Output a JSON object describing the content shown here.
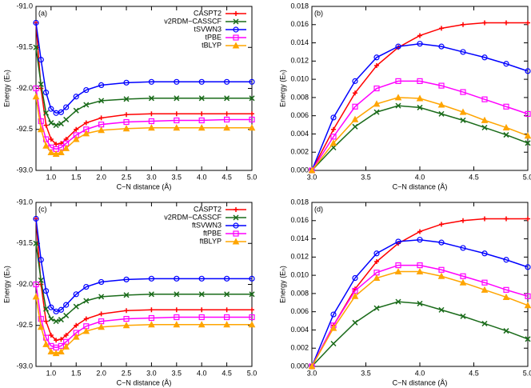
{
  "chart_data": [
    {
      "type": "line",
      "panel_label": "(a)",
      "xlabel": "C−N distance (Å)",
      "ylabel": "Energy (Eₕ)",
      "legend": "upper right",
      "xlim": [
        0.7,
        5.0
      ],
      "ylim": [
        -93,
        -91
      ],
      "xticks": [
        {
          "value": 1,
          "label": "1.0"
        },
        1.5,
        {
          "value": 2,
          "label": "2.0"
        },
        2.5,
        {
          "value": 3,
          "label": "3.0"
        },
        3.5,
        {
          "value": 4,
          "label": "4.0"
        },
        4.5,
        {
          "value": 5,
          "label": "5.0"
        }
      ],
      "yticks": [
        {
          "value": -93,
          "label": "-93.0"
        },
        -92.5,
        {
          "value": -92,
          "label": "-92.0"
        },
        -91.5,
        {
          "value": -91,
          "label": "-91.0"
        }
      ],
      "x": [
        0.7,
        0.8,
        0.9,
        1.0,
        1.1,
        1.2,
        1.3,
        1.5,
        1.7,
        2.0,
        2.5,
        3.0,
        3.5,
        4.0,
        4.5,
        5.0
      ],
      "series": [
        {
          "name": "CASPT2",
          "color": "#ff0000",
          "marker": "plus",
          "values": [
            -91.2,
            -92.0,
            -92.45,
            -92.62,
            -92.68,
            -92.67,
            -92.62,
            -92.5,
            -92.42,
            -92.36,
            -92.32,
            -92.31,
            -92.31,
            -92.31,
            -92.31,
            -92.31
          ]
        },
        {
          "name": "v2RDM−CASSCF",
          "color": "#1a6b1a",
          "marker": "cross",
          "values": [
            -91.5,
            -91.95,
            -92.3,
            -92.42,
            -92.45,
            -92.43,
            -92.38,
            -92.27,
            -92.2,
            -92.15,
            -92.13,
            -92.12,
            -92.12,
            -92.12,
            -92.12,
            -92.12
          ]
        },
        {
          "name": "tSVWN3",
          "color": "#0000ff",
          "marker": "circle",
          "values": [
            -91.2,
            -91.65,
            -92.05,
            -92.25,
            -92.3,
            -92.29,
            -92.23,
            -92.1,
            -92.02,
            -91.96,
            -91.93,
            -91.92,
            -91.92,
            -91.92,
            -91.92,
            -91.92
          ]
        },
        {
          "name": "tPBE",
          "color": "#ff00ff",
          "marker": "square",
          "values": [
            -92.0,
            -92.4,
            -92.62,
            -92.72,
            -92.74,
            -92.72,
            -92.67,
            -92.57,
            -92.5,
            -92.44,
            -92.41,
            -92.4,
            -92.39,
            -92.39,
            -92.38,
            -92.38
          ]
        },
        {
          "name": "tBLYP",
          "color": "#ffa500",
          "marker": "triangle",
          "values": [
            -92.1,
            -92.5,
            -92.7,
            -92.78,
            -92.8,
            -92.78,
            -92.73,
            -92.62,
            -92.55,
            -92.51,
            -92.49,
            -92.48,
            -92.48,
            -92.48,
            -92.48,
            -92.48
          ]
        }
      ]
    },
    {
      "type": "line",
      "panel_label": "(b)",
      "xlabel": "C−N distance (Å)",
      "ylabel": "Energy (Eₕ)",
      "xlim": [
        3,
        5
      ],
      "ylim": [
        0,
        0.018
      ],
      "xticks": [
        {
          "value": 3,
          "label": "3.0"
        },
        3.5,
        {
          "value": 4,
          "label": "4.0"
        },
        4.5,
        {
          "value": 5,
          "label": "5.0"
        }
      ],
      "yticks": [
        {
          "value": 0,
          "label": "0.000"
        },
        {
          "value": 0.002,
          "label": "0.002"
        },
        {
          "value": 0.004,
          "label": "0.004"
        },
        {
          "value": 0.006,
          "label": "0.006"
        },
        {
          "value": 0.008,
          "label": "0.008"
        },
        {
          "value": 0.01,
          "label": "0.010"
        },
        {
          "value": 0.012,
          "label": "0.012"
        },
        {
          "value": 0.014,
          "label": "0.014"
        },
        {
          "value": 0.016,
          "label": "0.016"
        },
        {
          "value": 0.018,
          "label": "0.018"
        }
      ],
      "x": [
        3.0,
        3.2,
        3.4,
        3.6,
        3.8,
        4.0,
        4.2,
        4.4,
        4.6,
        4.8,
        5.0
      ],
      "series": [
        {
          "color": "#ff0000",
          "marker": "plus",
          "values": [
            0,
            0.0045,
            0.0085,
            0.0115,
            0.0135,
            0.0148,
            0.0156,
            0.016,
            0.0162,
            0.0162,
            0.0162
          ]
        },
        {
          "color": "#1a6b1a",
          "marker": "cross",
          "values": [
            0,
            0.0025,
            0.0048,
            0.0064,
            0.0071,
            0.0069,
            0.0062,
            0.0055,
            0.0047,
            0.0039,
            0.003
          ]
        },
        {
          "color": "#0000ff",
          "marker": "circle",
          "values": [
            0,
            0.0058,
            0.0098,
            0.0124,
            0.0136,
            0.0139,
            0.0136,
            0.013,
            0.0124,
            0.0117,
            0.0109
          ]
        },
        {
          "color": "#ff00ff",
          "marker": "square",
          "values": [
            0,
            0.0037,
            0.007,
            0.009,
            0.0098,
            0.0098,
            0.0093,
            0.0086,
            0.0078,
            0.007,
            0.0062
          ]
        },
        {
          "color": "#ffa500",
          "marker": "triangle",
          "values": [
            0,
            0.003,
            0.0056,
            0.0073,
            0.008,
            0.0079,
            0.0072,
            0.0064,
            0.0055,
            0.0047,
            0.0038
          ]
        }
      ]
    },
    {
      "type": "line",
      "panel_label": "(c)",
      "xlabel": "C−N distance (Å)",
      "ylabel": "Energy (Eₕ)",
      "legend": "upper right",
      "xlim": [
        0.7,
        5.0
      ],
      "ylim": [
        -93,
        -91
      ],
      "xticks": [
        {
          "value": 1,
          "label": "1.0"
        },
        1.5,
        {
          "value": 2,
          "label": "2.0"
        },
        2.5,
        {
          "value": 3,
          "label": "3.0"
        },
        3.5,
        {
          "value": 4,
          "label": "4.0"
        },
        4.5,
        {
          "value": 5,
          "label": "5.0"
        }
      ],
      "yticks": [
        {
          "value": -93,
          "label": "-93.0"
        },
        -92.5,
        {
          "value": -92,
          "label": "-92.0"
        },
        -91.5,
        {
          "value": -91,
          "label": "-91.0"
        }
      ],
      "x": [
        0.7,
        0.8,
        0.9,
        1.0,
        1.1,
        1.2,
        1.3,
        1.5,
        1.7,
        2.0,
        2.5,
        3.0,
        3.5,
        4.0,
        4.5,
        5.0
      ],
      "series": [
        {
          "name": "CASPT2",
          "color": "#ff0000",
          "marker": "plus",
          "values": [
            -91.2,
            -92.0,
            -92.45,
            -92.62,
            -92.68,
            -92.67,
            -92.62,
            -92.5,
            -92.42,
            -92.36,
            -92.32,
            -92.31,
            -92.31,
            -92.31,
            -92.31,
            -92.31
          ]
        },
        {
          "name": "v2RDM−CASSCF",
          "color": "#1a6b1a",
          "marker": "cross",
          "values": [
            -91.5,
            -91.95,
            -92.3,
            -92.42,
            -92.45,
            -92.43,
            -92.38,
            -92.27,
            -92.2,
            -92.15,
            -92.13,
            -92.12,
            -92.12,
            -92.12,
            -92.12,
            -92.12
          ]
        },
        {
          "name": "ftSVWN3",
          "color": "#0000ff",
          "marker": "circle",
          "values": [
            -91.2,
            -91.7,
            -92.08,
            -92.28,
            -92.33,
            -92.31,
            -92.25,
            -92.12,
            -92.03,
            -91.97,
            -91.94,
            -91.93,
            -91.93,
            -91.93,
            -91.93,
            -91.93
          ]
        },
        {
          "name": "ftPBE",
          "color": "#ff00ff",
          "marker": "square",
          "values": [
            -92.0,
            -92.42,
            -92.65,
            -92.75,
            -92.77,
            -92.75,
            -92.7,
            -92.59,
            -92.51,
            -92.45,
            -92.42,
            -92.41,
            -92.4,
            -92.4,
            -92.4,
            -92.4
          ]
        },
        {
          "name": "ftBLYP",
          "color": "#ffa500",
          "marker": "triangle",
          "values": [
            -92.15,
            -92.52,
            -92.73,
            -92.82,
            -92.84,
            -92.82,
            -92.76,
            -92.64,
            -92.57,
            -92.52,
            -92.5,
            -92.49,
            -92.49,
            -92.49,
            -92.49,
            -92.49
          ]
        }
      ]
    },
    {
      "type": "line",
      "panel_label": "(d)",
      "xlabel": "C−N distance (Å)",
      "ylabel": "Energy (Eₕ)",
      "xlim": [
        3,
        5
      ],
      "ylim": [
        0,
        0.018
      ],
      "xticks": [
        {
          "value": 3,
          "label": "3.0"
        },
        3.5,
        {
          "value": 4,
          "label": "4.0"
        },
        4.5,
        {
          "value": 5,
          "label": "5.0"
        }
      ],
      "yticks": [
        {
          "value": 0,
          "label": "0.000"
        },
        {
          "value": 0.002,
          "label": "0.002"
        },
        {
          "value": 0.004,
          "label": "0.004"
        },
        {
          "value": 0.006,
          "label": "0.006"
        },
        {
          "value": 0.008,
          "label": "0.008"
        },
        {
          "value": 0.01,
          "label": "0.010"
        },
        {
          "value": 0.012,
          "label": "0.012"
        },
        {
          "value": 0.014,
          "label": "0.014"
        },
        {
          "value": 0.016,
          "label": "0.016"
        },
        {
          "value": 0.018,
          "label": "0.018"
        }
      ],
      "x": [
        3.0,
        3.2,
        3.4,
        3.6,
        3.8,
        4.0,
        4.2,
        4.4,
        4.6,
        4.8,
        5.0
      ],
      "series": [
        {
          "color": "#ff0000",
          "marker": "plus",
          "values": [
            0,
            0.0045,
            0.0085,
            0.0115,
            0.0135,
            0.0148,
            0.0156,
            0.016,
            0.0162,
            0.0162,
            0.0162
          ]
        },
        {
          "color": "#1a6b1a",
          "marker": "cross",
          "values": [
            0,
            0.0025,
            0.0048,
            0.0064,
            0.0071,
            0.0069,
            0.0062,
            0.0055,
            0.0047,
            0.0039,
            0.003
          ]
        },
        {
          "color": "#0000ff",
          "marker": "circle",
          "values": [
            0,
            0.0057,
            0.0097,
            0.0124,
            0.0137,
            0.0139,
            0.0136,
            0.013,
            0.0124,
            0.0117,
            0.0109
          ]
        },
        {
          "color": "#ff00ff",
          "marker": "square",
          "values": [
            0,
            0.0045,
            0.0083,
            0.0103,
            0.0111,
            0.0111,
            0.0106,
            0.0099,
            0.0092,
            0.0084,
            0.0077
          ]
        },
        {
          "color": "#ffa500",
          "marker": "triangle",
          "values": [
            0,
            0.0042,
            0.0077,
            0.0097,
            0.0104,
            0.0104,
            0.0099,
            0.0092,
            0.0084,
            0.0076,
            0.0067
          ]
        }
      ]
    }
  ]
}
